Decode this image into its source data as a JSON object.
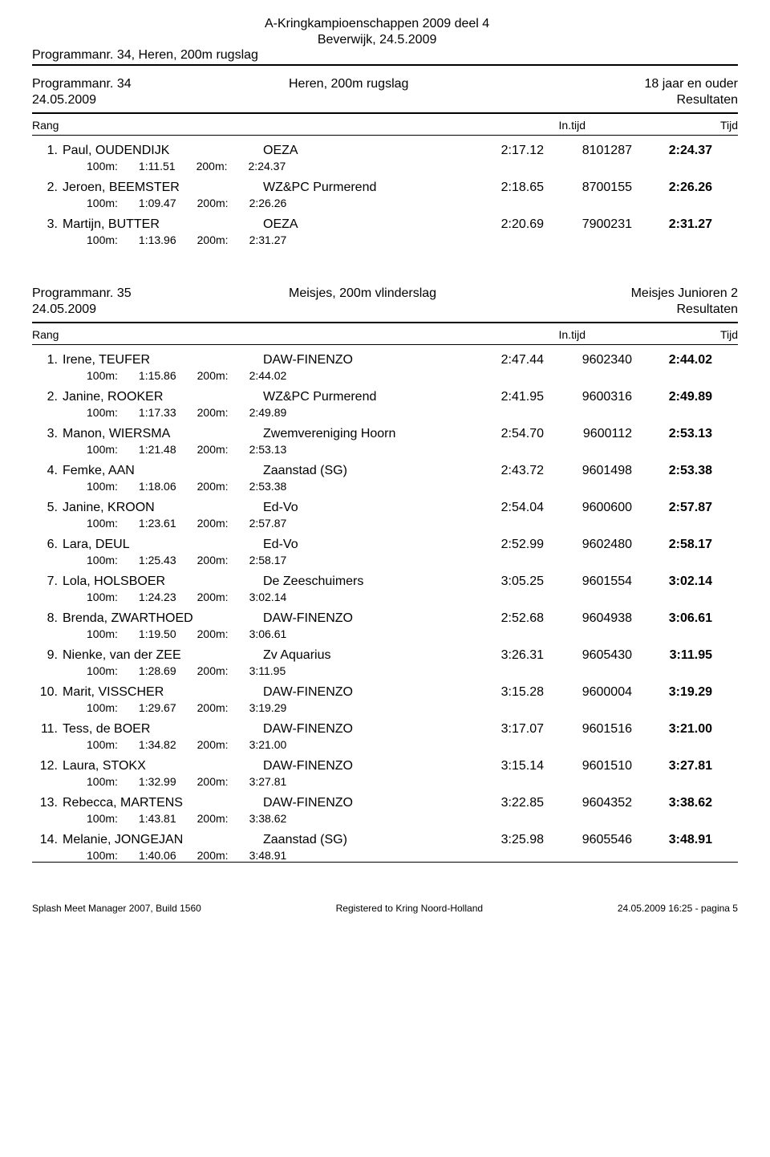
{
  "header": {
    "title_line1": "A-Kringkampioenschappen 2009 deel 4",
    "title_line2": "Beverwijk, 24.5.2009",
    "subtitle_left": "Programmanr. 34, Heren, 200m rugslag"
  },
  "columns": {
    "rang": "Rang",
    "intijd": "In.tijd",
    "tijd": "Tijd"
  },
  "sections": [
    {
      "prog_label": "Programmanr. 34",
      "event": "Heren, 200m rugslag",
      "category": "18 jaar en ouder",
      "date": "24.05.2009",
      "results_label": "Resultaten",
      "rows": [
        {
          "rank": "1.",
          "name": "Paul, OUDENDIJK",
          "club": "OEZA",
          "intime": "2:17.12",
          "code": "8101287",
          "final": "2:24.37",
          "splits": [
            [
              "100m:",
              "1:11.51"
            ],
            [
              "200m:",
              "2:24.37"
            ]
          ]
        },
        {
          "rank": "2.",
          "name": "Jeroen, BEEMSTER",
          "club": "WZ&PC Purmerend",
          "intime": "2:18.65",
          "code": "8700155",
          "final": "2:26.26",
          "splits": [
            [
              "100m:",
              "1:09.47"
            ],
            [
              "200m:",
              "2:26.26"
            ]
          ]
        },
        {
          "rank": "3.",
          "name": "Martijn, BUTTER",
          "club": "OEZA",
          "intime": "2:20.69",
          "code": "7900231",
          "final": "2:31.27",
          "splits": [
            [
              "100m:",
              "1:13.96"
            ],
            [
              "200m:",
              "2:31.27"
            ]
          ]
        }
      ]
    },
    {
      "prog_label": "Programmanr. 35",
      "event": "Meisjes, 200m vlinderslag",
      "category": "Meisjes Junioren 2",
      "date": "24.05.2009",
      "results_label": "Resultaten",
      "rows": [
        {
          "rank": "1.",
          "name": "Irene, TEUFER",
          "club": "DAW-FINENZO",
          "intime": "2:47.44",
          "code": "9602340",
          "final": "2:44.02",
          "splits": [
            [
              "100m:",
              "1:15.86"
            ],
            [
              "200m:",
              "2:44.02"
            ]
          ]
        },
        {
          "rank": "2.",
          "name": "Janine, ROOKER",
          "club": "WZ&PC Purmerend",
          "intime": "2:41.95",
          "code": "9600316",
          "final": "2:49.89",
          "splits": [
            [
              "100m:",
              "1:17.33"
            ],
            [
              "200m:",
              "2:49.89"
            ]
          ]
        },
        {
          "rank": "3.",
          "name": "Manon, WIERSMA",
          "club": "Zwemvereniging Hoorn",
          "intime": "2:54.70",
          "code": "9600112",
          "final": "2:53.13",
          "splits": [
            [
              "100m:",
              "1:21.48"
            ],
            [
              "200m:",
              "2:53.13"
            ]
          ]
        },
        {
          "rank": "4.",
          "name": "Femke, AAN",
          "club": "Zaanstad (SG)",
          "intime": "2:43.72",
          "code": "9601498",
          "final": "2:53.38",
          "splits": [
            [
              "100m:",
              "1:18.06"
            ],
            [
              "200m:",
              "2:53.38"
            ]
          ]
        },
        {
          "rank": "5.",
          "name": "Janine, KROON",
          "club": "Ed-Vo",
          "intime": "2:54.04",
          "code": "9600600",
          "final": "2:57.87",
          "splits": [
            [
              "100m:",
              "1:23.61"
            ],
            [
              "200m:",
              "2:57.87"
            ]
          ]
        },
        {
          "rank": "6.",
          "name": "Lara, DEUL",
          "club": "Ed-Vo",
          "intime": "2:52.99",
          "code": "9602480",
          "final": "2:58.17",
          "splits": [
            [
              "100m:",
              "1:25.43"
            ],
            [
              "200m:",
              "2:58.17"
            ]
          ]
        },
        {
          "rank": "7.",
          "name": "Lola, HOLSBOER",
          "club": "De Zeeschuimers",
          "intime": "3:05.25",
          "code": "9601554",
          "final": "3:02.14",
          "splits": [
            [
              "100m:",
              "1:24.23"
            ],
            [
              "200m:",
              "3:02.14"
            ]
          ]
        },
        {
          "rank": "8.",
          "name": "Brenda, ZWARTHOED",
          "club": "DAW-FINENZO",
          "intime": "2:52.68",
          "code": "9604938",
          "final": "3:06.61",
          "splits": [
            [
              "100m:",
              "1:19.50"
            ],
            [
              "200m:",
              "3:06.61"
            ]
          ]
        },
        {
          "rank": "9.",
          "name": "Nienke, van der ZEE",
          "club": "Zv Aquarius",
          "intime": "3:26.31",
          "code": "9605430",
          "final": "3:11.95",
          "splits": [
            [
              "100m:",
              "1:28.69"
            ],
            [
              "200m:",
              "3:11.95"
            ]
          ]
        },
        {
          "rank": "10.",
          "name": "Marit, VISSCHER",
          "club": "DAW-FINENZO",
          "intime": "3:15.28",
          "code": "9600004",
          "final": "3:19.29",
          "splits": [
            [
              "100m:",
              "1:29.67"
            ],
            [
              "200m:",
              "3:19.29"
            ]
          ]
        },
        {
          "rank": "11.",
          "name": "Tess, de BOER",
          "club": "DAW-FINENZO",
          "intime": "3:17.07",
          "code": "9601516",
          "final": "3:21.00",
          "splits": [
            [
              "100m:",
              "1:34.82"
            ],
            [
              "200m:",
              "3:21.00"
            ]
          ]
        },
        {
          "rank": "12.",
          "name": "Laura, STOKX",
          "club": "DAW-FINENZO",
          "intime": "3:15.14",
          "code": "9601510",
          "final": "3:27.81",
          "splits": [
            [
              "100m:",
              "1:32.99"
            ],
            [
              "200m:",
              "3:27.81"
            ]
          ]
        },
        {
          "rank": "13.",
          "name": "Rebecca, MARTENS",
          "club": "DAW-FINENZO",
          "intime": "3:22.85",
          "code": "9604352",
          "final": "3:38.62",
          "splits": [
            [
              "100m:",
              "1:43.81"
            ],
            [
              "200m:",
              "3:38.62"
            ]
          ]
        },
        {
          "rank": "14.",
          "name": "Melanie, JONGEJAN",
          "club": "Zaanstad (SG)",
          "intime": "3:25.98",
          "code": "9605546",
          "final": "3:48.91",
          "splits": [
            [
              "100m:",
              "1:40.06"
            ],
            [
              "200m:",
              "3:48.91"
            ]
          ]
        }
      ]
    }
  ],
  "footer": {
    "left": "Splash Meet Manager 2007, Build 1560",
    "center": "Registered to Kring Noord-Holland",
    "right": "24.05.2009 16:25 - pagina 5"
  }
}
